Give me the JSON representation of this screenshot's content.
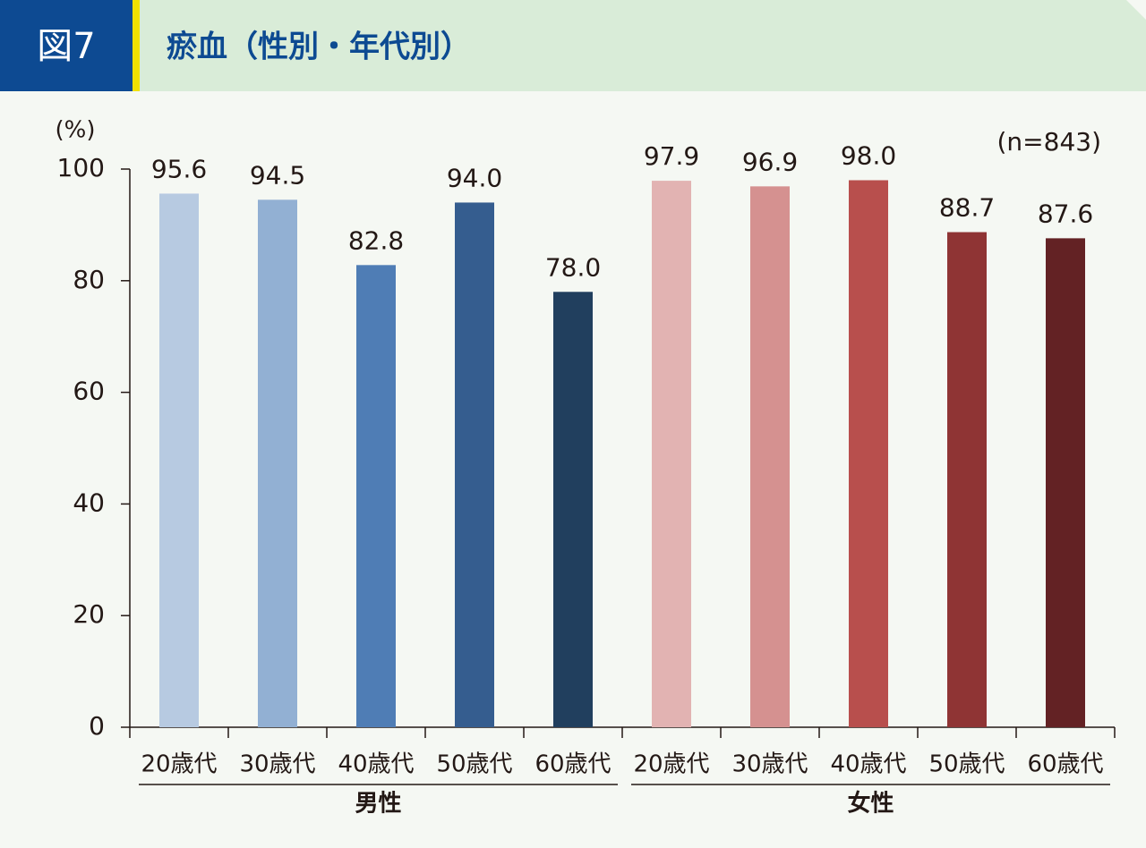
{
  "chart_data": {
    "type": "bar",
    "figure_label": "図7",
    "title": "瘀血（性別・年代別）",
    "y_unit": "(%)",
    "note": "(n=843)",
    "ylim": [
      0,
      100
    ],
    "yticks": [
      0,
      20,
      40,
      60,
      80,
      100
    ],
    "groups": [
      {
        "name": "男性",
        "categories": [
          "20歳代",
          "30歳代",
          "40歳代",
          "50歳代",
          "60歳代"
        ],
        "values": [
          95.6,
          94.5,
          82.8,
          94.0,
          78.0
        ],
        "value_labels": [
          "95.6",
          "94.5",
          "82.8",
          "94.0",
          "78.0"
        ],
        "colors": [
          "#b7cae1",
          "#92b0d3",
          "#4f7db5",
          "#355d8f",
          "#213f5e"
        ]
      },
      {
        "name": "女性",
        "categories": [
          "20歳代",
          "30歳代",
          "40歳代",
          "50歳代",
          "60歳代"
        ],
        "values": [
          97.9,
          96.9,
          98.0,
          88.7,
          87.6
        ],
        "value_labels": [
          "97.9",
          "96.9",
          "98.0",
          "88.7",
          "87.6"
        ],
        "colors": [
          "#e2b3b2",
          "#d59190",
          "#b84f4d",
          "#8f3434",
          "#632224"
        ]
      }
    ]
  }
}
